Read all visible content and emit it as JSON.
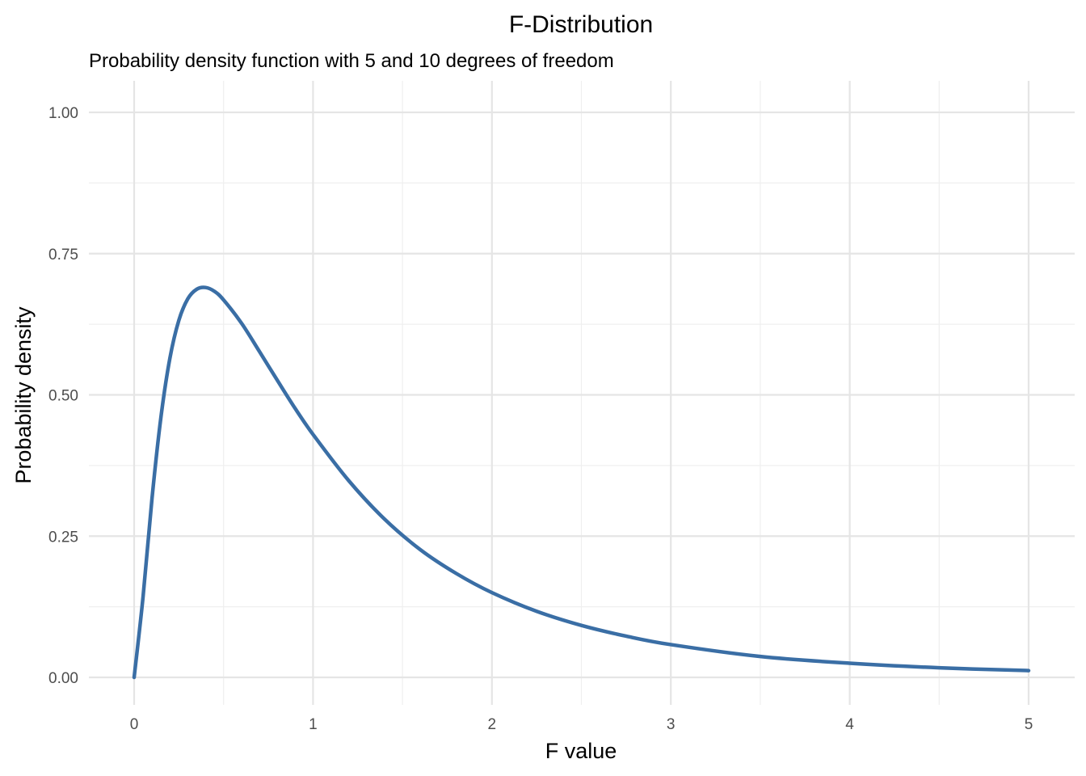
{
  "chart_data": {
    "type": "line",
    "title": "F-Distribution",
    "subtitle": "Probability density function with 5 and 10 degrees of freedom",
    "xlabel": "F value",
    "ylabel": "Probability density",
    "xlim": [
      0,
      5
    ],
    "ylim": [
      0,
      1
    ],
    "x_ticks": [
      0,
      1,
      2,
      3,
      4,
      5
    ],
    "x_tick_labels": [
      "0",
      "1",
      "2",
      "3",
      "4",
      "5"
    ],
    "y_ticks": [
      0,
      0.25,
      0.5,
      0.75,
      1.0
    ],
    "y_tick_labels": [
      "0.00",
      "0.25",
      "0.50",
      "0.75",
      "1.00"
    ],
    "grid": true,
    "legend": "none",
    "series": [
      {
        "color": "#3a6ea5",
        "x": [
          0,
          0.05,
          0.1,
          0.15,
          0.2,
          0.25,
          0.3,
          0.35,
          0.4,
          0.45,
          0.5,
          0.6,
          0.7,
          0.8,
          0.9,
          1.0,
          1.2,
          1.4,
          1.6,
          1.8,
          2.0,
          2.25,
          2.5,
          2.75,
          3.0,
          3.5,
          4.0,
          4.5,
          5.0
        ],
        "y": [
          0.0,
          0.143,
          0.317,
          0.461,
          0.565,
          0.632,
          0.67,
          0.687,
          0.69,
          0.683,
          0.668,
          0.627,
          0.577,
          0.526,
          0.476,
          0.43,
          0.348,
          0.28,
          0.226,
          0.184,
          0.15,
          0.117,
          0.092,
          0.073,
          0.058,
          0.037,
          0.025,
          0.017,
          0.012
        ]
      }
    ]
  }
}
